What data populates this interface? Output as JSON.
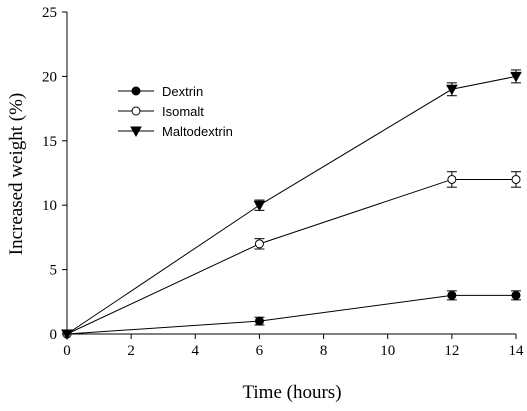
{
  "chart_data": {
    "type": "line",
    "title": "",
    "xlabel": "Time (hours)",
    "ylabel": "Increased weight (%)",
    "xlim": [
      0,
      14
    ],
    "ylim": [
      0,
      25
    ],
    "xticks": [
      0,
      2,
      4,
      6,
      8,
      10,
      12,
      14
    ],
    "yticks": [
      0,
      5,
      10,
      15,
      20,
      25
    ],
    "grid": false,
    "legend_position": "upper-left",
    "x": [
      0,
      6,
      12,
      14
    ],
    "series": [
      {
        "name": "Dextrin",
        "marker": "filled-circle",
        "values": [
          0,
          1,
          3,
          3
        ],
        "errors": [
          0,
          0.3,
          0.35,
          0.35
        ]
      },
      {
        "name": "Isomalt",
        "marker": "open-circle",
        "values": [
          0,
          7,
          12,
          12
        ],
        "errors": [
          0,
          0.4,
          0.6,
          0.6
        ]
      },
      {
        "name": "Maltodextrin",
        "marker": "filled-triangle-down",
        "values": [
          0,
          10,
          19,
          20
        ],
        "errors": [
          0,
          0.4,
          0.5,
          0.5
        ]
      }
    ]
  }
}
